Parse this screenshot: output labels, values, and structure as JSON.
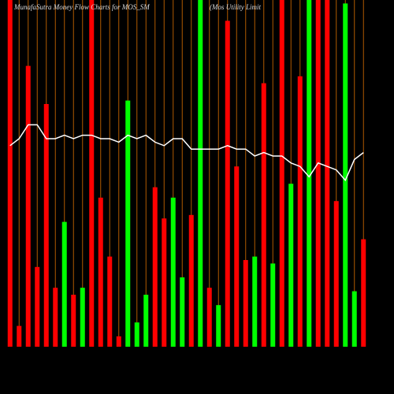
{
  "chart_data": {
    "type": "bar",
    "title": "MunafaSutra  Money Flow  Charts for MOS_SM",
    "subtitle": "(Mos Utility Limit",
    "categories": [
      null,
      null,
      null,
      null,
      null,
      null,
      null,
      null,
      null,
      null,
      null,
      null,
      null,
      null,
      null,
      null,
      null,
      null,
      null,
      null,
      null,
      null,
      null,
      null,
      null,
      null,
      null,
      null,
      null,
      null,
      null,
      null,
      null,
      null,
      null,
      null,
      null,
      null,
      null,
      null
    ],
    "values": [
      100,
      6,
      81,
      23,
      70,
      17,
      36,
      15,
      17,
      100,
      43,
      26,
      3,
      71,
      7,
      15,
      46,
      37,
      43,
      20,
      38,
      100,
      17,
      12,
      94,
      52,
      25,
      26,
      76,
      24,
      100,
      47,
      78,
      100,
      100,
      100,
      42,
      99,
      16,
      31
    ],
    "colors": [
      "#ff0000",
      "#ff0000",
      "#ff0000",
      "#ff0000",
      "#ff0000",
      "#ff0000",
      "#00ff00",
      "#ff0000",
      "#00ff00",
      "#ff0000",
      "#ff0000",
      "#ff0000",
      "#ff0000",
      "#00ff00",
      "#00ff00",
      "#00ff00",
      "#ff0000",
      "#ff0000",
      "#00ff00",
      "#00ff00",
      "#ff0000",
      "#00ff00",
      "#ff0000",
      "#00ff00",
      "#ff0000",
      "#ff0000",
      "#ff0000",
      "#00ff00",
      "#ff0000",
      "#00ff00",
      "#ff0000",
      "#00ff00",
      "#ff0000",
      "#00ff00",
      "#ff0000",
      "#ff0000",
      "#ff0000",
      "#00ff00",
      "#00ff00",
      "#ff0000"
    ],
    "line": {
      "color": "#ffffff",
      "values": [
        58,
        60,
        64,
        64,
        60,
        60,
        61,
        60,
        61,
        61,
        60,
        60,
        59,
        61,
        60,
        61,
        59,
        58,
        60,
        60,
        57,
        57,
        57,
        57,
        58,
        57,
        57,
        55,
        56,
        55,
        55,
        53,
        52,
        49,
        53,
        52,
        51,
        48,
        54,
        56
      ]
    },
    "grid_color": "#b05a00",
    "ylim": [
      0,
      100
    ],
    "grid": true
  }
}
